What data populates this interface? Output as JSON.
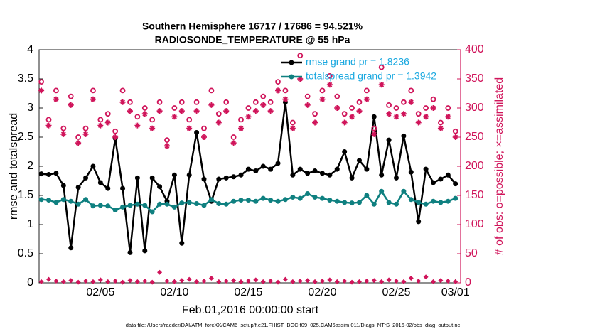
{
  "chart_data": {
    "type": "line",
    "title": "Southern Hemisphere 16717 / 17686 = 94.521%",
    "subtitle": "RADIOSONDE_TEMPERATURE @ 55 hPa",
    "xlabel": "Feb.01,2016 00:00:00 start",
    "ylabel": "rmse and totalspread",
    "y2label": "# of obs: o=possible; ×=assimilated",
    "footnote": "data file: /Users/raeder/DAI/ATM_forcXX/CAM6_setup/f.e21.FHIST_BGC.f09_025.CAM6assim.011/Diags_NTrS_2016-02/obs_diag_output.nc",
    "x": [
      0,
      0.5,
      1,
      1.5,
      2,
      2.5,
      3,
      3.5,
      4,
      4.5,
      5,
      5.5,
      6,
      6.5,
      7,
      7.5,
      8,
      8.5,
      9,
      9.5,
      10,
      10.5,
      11,
      11.5,
      12,
      12.5,
      13,
      13.5,
      14,
      14.5,
      15,
      15.5,
      16,
      16.5,
      17,
      17.5,
      18,
      18.5,
      19,
      19.5,
      20,
      20.5,
      21,
      21.5,
      22,
      22.5,
      23,
      23.5,
      24,
      24.5,
      25,
      25.5,
      26,
      26.5,
      27,
      27.5,
      28
    ],
    "xlim": [
      -0.15,
      28.35
    ],
    "xticks": [
      {
        "value": 4,
        "label": "02/05"
      },
      {
        "value": 9,
        "label": "02/10"
      },
      {
        "value": 14,
        "label": "02/15"
      },
      {
        "value": 19,
        "label": "02/20"
      },
      {
        "value": 24,
        "label": "02/25"
      },
      {
        "value": 28,
        "label": "03/01"
      }
    ],
    "ylim": [
      0,
      4
    ],
    "yticks": [
      0,
      0.5,
      1,
      1.5,
      2,
      2.5,
      3,
      3.5,
      4
    ],
    "y2lim": [
      0,
      400
    ],
    "y2ticks": [
      0,
      50,
      100,
      150,
      200,
      250,
      300,
      350,
      400
    ],
    "y2color": "#d0145a",
    "legend": "upper right",
    "series": [
      {
        "name": "rmse grand pr = 1.8236",
        "color": "#000000",
        "marker": "circle",
        "line": true,
        "values": [
          1.87,
          1.86,
          1.88,
          1.67,
          0.6,
          1.64,
          1.8,
          2.0,
          1.72,
          1.62,
          2.48,
          1.62,
          0.52,
          1.8,
          0.55,
          1.8,
          1.65,
          1.4,
          1.85,
          0.68,
          1.85,
          2.58,
          1.78,
          1.4,
          1.78,
          1.8,
          1.82,
          1.85,
          1.95,
          1.92,
          2.0,
          1.95,
          2.05,
          3.1,
          1.85,
          1.95,
          1.88,
          1.92,
          1.88,
          1.85,
          1.95,
          2.25,
          1.8,
          2.1,
          1.95,
          2.85,
          1.85,
          2.45,
          1.8,
          2.52,
          1.9,
          1.05,
          1.95,
          1.72,
          1.78,
          1.85,
          1.7
        ]
      },
      {
        "name": "totalspread grand pr = 1.3942",
        "color": "#0f8080",
        "marker": "circle",
        "line": true,
        "values": [
          1.43,
          1.42,
          1.38,
          1.43,
          1.4,
          1.35,
          1.43,
          1.32,
          1.33,
          1.32,
          1.25,
          1.3,
          1.33,
          1.35,
          1.33,
          1.22,
          1.35,
          1.35,
          1.3,
          1.37,
          1.38,
          1.36,
          1.33,
          1.43,
          1.36,
          1.35,
          1.4,
          1.42,
          1.42,
          1.4,
          1.45,
          1.42,
          1.4,
          1.43,
          1.47,
          1.45,
          1.53,
          1.47,
          1.45,
          1.42,
          1.4,
          1.38,
          1.37,
          1.38,
          1.5,
          1.35,
          1.57,
          1.38,
          1.35,
          1.57,
          1.43,
          1.38,
          1.35,
          1.4,
          1.38,
          1.4,
          1.45
        ]
      },
      {
        "color": "#d0145a",
        "marker": "ring",
        "line": false,
        "axis": "y2",
        "values": [
          345,
          280,
          330,
          265,
          320,
          250,
          265,
          330,
          280,
          290,
          260,
          330,
          310,
          285,
          300,
          280,
          310,
          245,
          300,
          310,
          280,
          310,
          265,
          330,
          290,
          310,
          250,
          280,
          300,
          310,
          320,
          310,
          345,
          330,
          275,
          390,
          320,
          290,
          330,
          355,
          320,
          290,
          300,
          310,
          330,
          265,
          370,
          305,
          300,
          310,
          330,
          290,
          300,
          315,
          275,
          300,
          260
        ]
      },
      {
        "color": "#d0145a",
        "marker": "asterisk",
        "line": false,
        "axis": "y2",
        "values": [
          330,
          270,
          315,
          255,
          305,
          240,
          255,
          315,
          270,
          275,
          250,
          310,
          295,
          270,
          290,
          265,
          295,
          235,
          285,
          295,
          265,
          295,
          250,
          305,
          275,
          295,
          240,
          265,
          285,
          295,
          305,
          295,
          330,
          315,
          265,
          350,
          305,
          275,
          315,
          340,
          300,
          275,
          285,
          295,
          315,
          255,
          340,
          290,
          285,
          290,
          310,
          275,
          285,
          300,
          265,
          285,
          250
        ]
      },
      {
        "color": "#d0145a",
        "marker": "diamond",
        "line": false,
        "axis": "y2",
        "values": [
          2,
          6,
          3,
          2,
          4,
          1,
          3,
          2,
          5,
          2,
          3,
          1,
          4,
          2,
          3,
          1,
          18,
          3,
          2,
          4,
          6,
          2,
          3,
          8,
          2,
          3,
          4,
          2,
          3,
          5,
          2,
          3,
          1,
          6,
          2,
          3,
          4,
          2,
          3,
          5,
          2,
          3,
          1,
          2,
          3,
          4,
          2,
          5,
          3,
          2,
          8,
          3,
          10,
          2,
          4,
          3,
          2
        ]
      }
    ]
  }
}
